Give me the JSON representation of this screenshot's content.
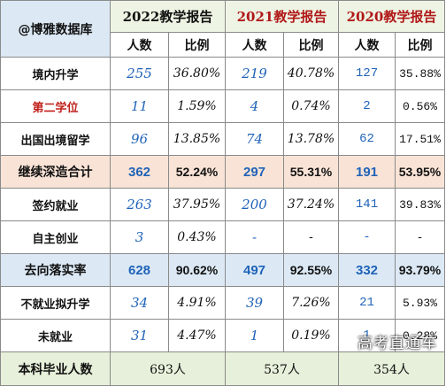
{
  "corner_label": "@博雅数据库",
  "years": [
    "2022教学报告",
    "2021教学报告",
    "2020教学报告"
  ],
  "sub_headers": [
    "人数",
    "比例"
  ],
  "rows": [
    {
      "label": "境内升学",
      "v2022": "255",
      "p2022": "36.80%",
      "v2021": "219",
      "p2021": "40.78%",
      "v2020": "127",
      "p2020": "35.88%"
    },
    {
      "label": "第二学位",
      "v2022": "11",
      "p2022": "1.59%",
      "v2021": "4",
      "p2021": "0.74%",
      "v2020": "2",
      "p2020": "0.56%"
    },
    {
      "label": "出国出境留学",
      "v2022": "96",
      "p2022": "13.85%",
      "v2021": "74",
      "p2021": "13.78%",
      "v2020": "62",
      "p2020": "17.51%"
    },
    {
      "label": "继续深造合计",
      "v2022": "362",
      "p2022": "52.24%",
      "v2021": "297",
      "p2021": "55.31%",
      "v2020": "191",
      "p2020": "53.95%"
    },
    {
      "label": "签约就业",
      "v2022": "263",
      "p2022": "37.95%",
      "v2021": "200",
      "p2021": "37.24%",
      "v2020": "141",
      "p2020": "39.83%"
    },
    {
      "label": "自主创业",
      "v2022": "3",
      "p2022": "0.43%",
      "v2021": "-",
      "p2021": "-",
      "v2020": "-",
      "p2020": "-"
    },
    {
      "label": "去向落实率",
      "v2022": "628",
      "p2022": "90.62%",
      "v2021": "497",
      "p2021": "92.55%",
      "v2020": "332",
      "p2020": "93.79%"
    },
    {
      "label": "不就业拟升学",
      "v2022": "34",
      "p2022": "4.91%",
      "v2021": "39",
      "p2021": "7.26%",
      "v2020": "21",
      "p2020": "5.93%"
    },
    {
      "label": "未就业",
      "v2022": "31",
      "p2022": "4.47%",
      "v2021": "1",
      "p2021": "0.19%",
      "v2020": "1",
      "p2020": "0.28%"
    }
  ],
  "total": {
    "label": "本科毕业人数",
    "v2022": "693人",
    "v2021": "537人",
    "v2020": "354人"
  },
  "watermark": "高考直通车",
  "colors": {
    "number_blue": "#1f63b8",
    "highlight_orange": "#f9e3d6",
    "highlight_blue": "#dce9f5",
    "header_green": "#eef4e4",
    "year_red": "#b01818"
  }
}
